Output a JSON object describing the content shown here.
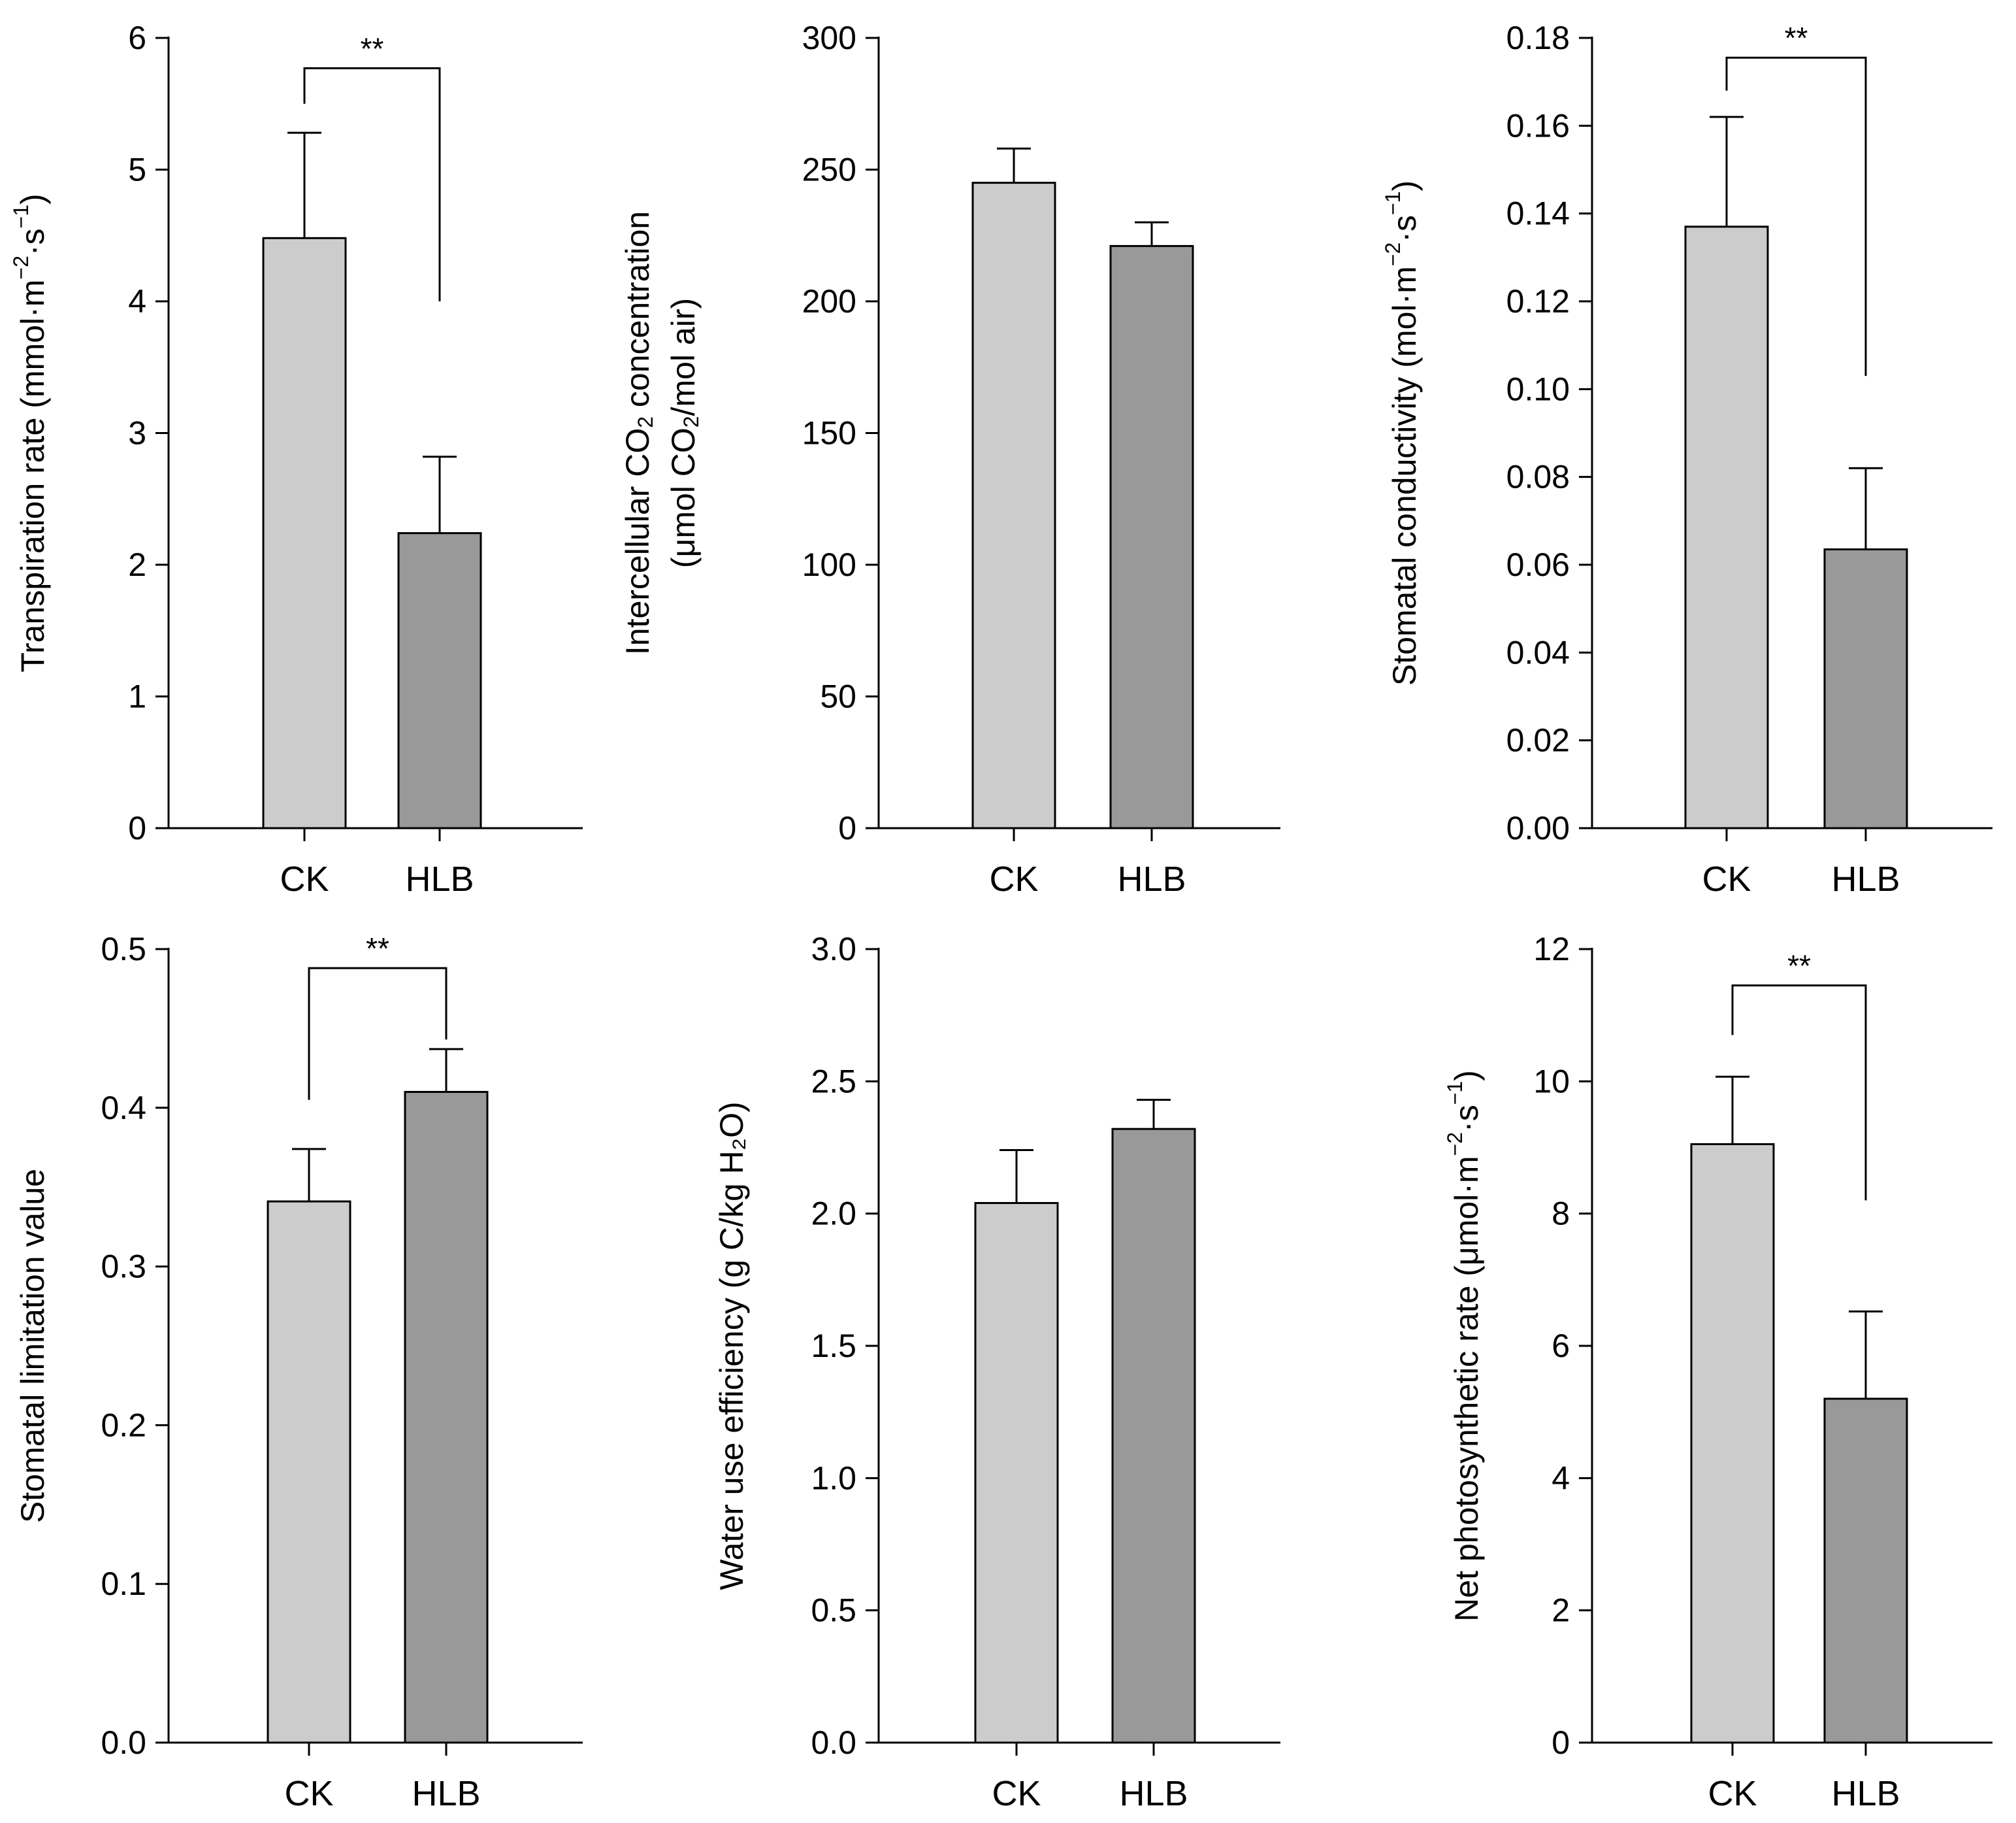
{
  "figure": {
    "bar_colors": {
      "CK": "#cccccc",
      "HLB": "#999999"
    },
    "outline_color": "#000000"
  },
  "chart_data": [
    {
      "type": "bar",
      "id": "transpiration",
      "title": "",
      "xlabel": "",
      "ylabel_lines": [
        [
          {
            "t": "Transpiration rate (mmol·m"
          },
          {
            "t": "−2",
            "sup": true
          },
          {
            "t": "·s"
          },
          {
            "t": "−1",
            "sup": true
          },
          {
            "t": ")"
          }
        ]
      ],
      "categories": [
        "CK",
        "HLB"
      ],
      "values": [
        4.48,
        2.24
      ],
      "errors": [
        0.8,
        0.58
      ],
      "ylim": [
        0,
        6
      ],
      "yticks": [
        "0",
        "1",
        "2",
        "3",
        "4",
        "5",
        "6"
      ],
      "significance": {
        "label": "**",
        "bracket_top": 5.77,
        "left_end": 5.5,
        "right_end": 4.0
      }
    },
    {
      "type": "bar",
      "id": "intercellular-co2",
      "title": "",
      "xlabel": "",
      "ylabel_lines": [
        [
          {
            "t": "Intercellular CO"
          },
          {
            "t": "2",
            "sub": true
          },
          {
            "t": " concentration"
          }
        ],
        [
          {
            "t": "(μmol CO"
          },
          {
            "t": "2",
            "sub": true
          },
          {
            "t": "/mol air)"
          }
        ]
      ],
      "categories": [
        "CK",
        "HLB"
      ],
      "values": [
        245,
        221
      ],
      "errors": [
        13,
        9
      ],
      "ylim": [
        0,
        300
      ],
      "yticks": [
        "0",
        "50",
        "100",
        "150",
        "200",
        "250",
        "300"
      ],
      "significance": null
    },
    {
      "type": "bar",
      "id": "stomatal-conductivity",
      "title": "",
      "xlabel": "",
      "ylabel_lines": [
        [
          {
            "t": "Stomatal conductivity (mol·m"
          },
          {
            "t": "−2",
            "sup": true
          },
          {
            "t": "·s"
          },
          {
            "t": "−1",
            "sup": true
          },
          {
            "t": ")"
          }
        ]
      ],
      "categories": [
        "CK",
        "HLB"
      ],
      "values": [
        0.137,
        0.0635
      ],
      "errors": [
        0.025,
        0.0185
      ],
      "ylim": [
        0,
        0.18
      ],
      "yticks": [
        "0.00",
        "0.02",
        "0.04",
        "0.06",
        "0.08",
        "0.10",
        "0.12",
        "0.14",
        "0.16",
        "0.18"
      ],
      "significance": {
        "label": "**",
        "bracket_top": 0.1755,
        "left_end": 0.168,
        "right_end": 0.103
      }
    },
    {
      "type": "bar",
      "id": "stomatal-limitation",
      "title": "",
      "xlabel": "",
      "ylabel_lines": [
        [
          {
            "t": "Stomatal limitation value"
          }
        ]
      ],
      "categories": [
        "CK",
        "HLB"
      ],
      "values": [
        0.341,
        0.41
      ],
      "errors": [
        0.033,
        0.027
      ],
      "ylim": [
        0,
        0.5
      ],
      "yticks": [
        "0.0",
        "0.1",
        "0.2",
        "0.3",
        "0.4",
        "0.5"
      ],
      "significance": {
        "label": "**",
        "bracket_top": 0.488,
        "left_end": 0.405,
        "right_end": 0.443
      }
    },
    {
      "type": "bar",
      "id": "water-use-efficiency",
      "title": "",
      "xlabel": "",
      "ylabel_lines": [
        [
          {
            "t": "Water use efficiency (g C/kg H₂O)"
          }
        ]
      ],
      "categories": [
        "CK",
        "HLB"
      ],
      "values": [
        2.04,
        2.32
      ],
      "errors": [
        0.2,
        0.11
      ],
      "ylim": [
        0,
        3.0
      ],
      "yticks": [
        "0.0",
        "0.5",
        "1.0",
        "1.5",
        "2.0",
        "2.5",
        "3.0"
      ],
      "significance": null
    },
    {
      "type": "bar",
      "id": "net-photosynthetic",
      "title": "",
      "xlabel": "",
      "ylabel_lines": [
        [
          {
            "t": "Net photosynthetic rate (μmol·m"
          },
          {
            "t": "−2",
            "sup": true
          },
          {
            "t": "·s"
          },
          {
            "t": "−1",
            "sup": true
          },
          {
            "t": ")"
          }
        ]
      ],
      "categories": [
        "CK",
        "HLB"
      ],
      "values": [
        9.05,
        5.2
      ],
      "errors": [
        1.02,
        1.32
      ],
      "ylim": [
        0,
        12
      ],
      "yticks": [
        "0",
        "2",
        "4",
        "6",
        "8",
        "10",
        "12"
      ],
      "significance": {
        "label": "**",
        "bracket_top": 11.45,
        "left_end": 10.7,
        "right_end": 8.2
      }
    }
  ]
}
